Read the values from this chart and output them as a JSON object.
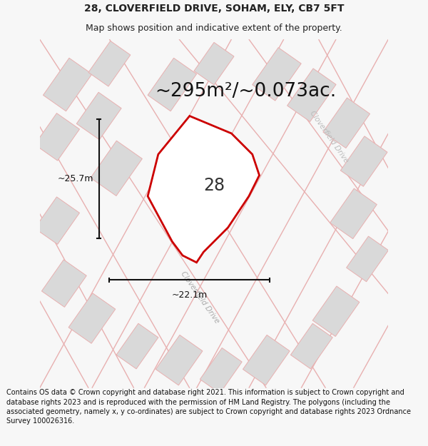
{
  "title": "28, CLOVERFIELD DRIVE, SOHAM, ELY, CB7 5FT",
  "subtitle": "Map shows position and indicative extent of the property.",
  "area_text": "~295m²/~0.073ac.",
  "label_28": "28",
  "dim_height": "~25.7m",
  "dim_width": "~22.1m",
  "road_label1": "Cloverfield Drive",
  "road_label2": "Cloverfield Drive",
  "footer": "Contains OS data © Crown copyright and database right 2021. This information is subject to Crown copyright and database rights 2023 and is reproduced with the permission of HM Land Registry. The polygons (including the associated geometry, namely x, y co-ordinates) are subject to Crown copyright and database rights 2023 Ordnance Survey 100026316.",
  "bg_color": "#f7f7f7",
  "map_bg": "#f2efed",
  "plot_fill": "#ffffff",
  "plot_edge": "#cc0000",
  "building_fill": "#d9d9d9",
  "building_edge": "#e8b0b0",
  "road_color": "#e8b0b0",
  "road_fill": "#f5f0f0",
  "dim_color": "#111111",
  "text_color": "#222222",
  "footer_color": "#111111",
  "title_fontsize": 10,
  "subtitle_fontsize": 9,
  "area_fontsize": 19,
  "label_fontsize": 17,
  "footer_fontsize": 7.0
}
